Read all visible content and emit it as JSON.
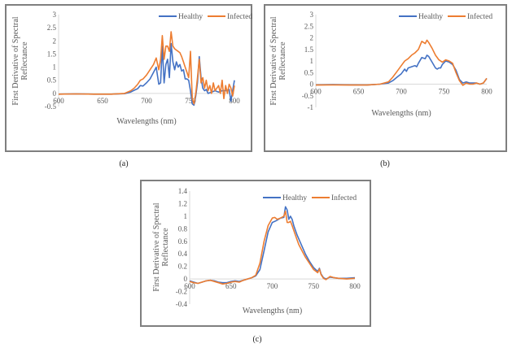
{
  "panels": [
    {
      "label": "(a)"
    },
    {
      "label": "(b)"
    },
    {
      "label": "(c)"
    }
  ],
  "chart_data": [
    {
      "id": "a",
      "type": "line",
      "title": "",
      "xlabel": "Wavelengths (nm)",
      "ylabel": "First Derivative of Spectral Reflectance",
      "ylabel_lines": [
        "First Derivative of Spectral",
        "Reflectance"
      ],
      "xlim": [
        600,
        800
      ],
      "ylim": [
        -0.5,
        3
      ],
      "xticks": [
        600,
        650,
        700,
        750,
        800
      ],
      "yticks": [
        -0.5,
        0,
        0.5,
        1,
        1.5,
        2,
        2.5,
        3
      ],
      "ytick_labels": [
        "-0.5",
        "0",
        "0.5",
        "1",
        "1.5",
        "2",
        "2.5",
        "3"
      ],
      "legend": "top-right",
      "grid": false,
      "series": [
        {
          "name": "Healthy",
          "color": "#4472C4",
          "x": [
            600,
            620,
            640,
            660,
            675,
            682,
            686,
            690,
            693,
            696,
            700,
            704,
            708,
            711,
            714,
            716,
            718,
            720,
            722,
            724,
            726,
            728,
            730,
            732,
            734,
            736,
            738,
            740,
            742,
            744,
            746,
            748,
            750,
            752,
            754,
            756,
            758,
            760,
            762,
            764,
            766,
            768,
            770,
            774,
            778,
            782,
            786,
            790,
            794,
            796,
            798,
            800
          ],
          "y": [
            -0.03,
            -0.02,
            -0.03,
            -0.03,
            -0.01,
            0.05,
            0.12,
            0.18,
            0.3,
            0.28,
            0.4,
            0.55,
            0.8,
            1.0,
            0.35,
            0.4,
            1.8,
            0.4,
            1.1,
            1.3,
            0.6,
            1.9,
            1.2,
            0.9,
            1.2,
            1.0,
            1.1,
            0.85,
            0.9,
            0.55,
            0.55,
            0.5,
            0.1,
            -0.4,
            -0.45,
            -0.1,
            0.4,
            1.4,
            0.6,
            0.2,
            0.1,
            0.15,
            0.0,
            0.05,
            0.1,
            0.05,
            0.1,
            0.1,
            0.15,
            -0.3,
            0.1,
            0.5
          ]
        },
        {
          "name": "Infected",
          "color": "#ED7D31",
          "x": [
            600,
            620,
            640,
            660,
            675,
            682,
            686,
            690,
            693,
            696,
            700,
            704,
            708,
            711,
            714,
            716,
            718,
            720,
            722,
            724,
            726,
            728,
            730,
            732,
            734,
            736,
            738,
            740,
            742,
            744,
            746,
            748,
            750,
            752,
            754,
            756,
            758,
            760,
            762,
            764,
            766,
            768,
            770,
            772,
            774,
            776,
            778,
            780,
            782,
            784,
            786,
            788,
            790,
            792,
            794,
            796,
            798,
            800
          ],
          "y": [
            -0.03,
            -0.02,
            -0.03,
            -0.03,
            0.0,
            0.1,
            0.2,
            0.35,
            0.5,
            0.55,
            0.7,
            0.9,
            1.1,
            1.35,
            0.9,
            1.3,
            2.2,
            1.3,
            1.8,
            1.8,
            1.6,
            2.35,
            1.8,
            1.7,
            1.65,
            1.6,
            1.55,
            1.4,
            1.2,
            1.0,
            0.8,
            0.6,
            1.6,
            -0.2,
            -0.4,
            0.0,
            0.6,
            1.3,
            0.4,
            0.6,
            0.2,
            0.5,
            0.1,
            0.3,
            0.0,
            0.4,
            0.1,
            0.2,
            0.3,
            0.0,
            0.5,
            -0.2,
            0.3,
            0.0,
            0.35,
            0.2,
            -0.1,
            0.3
          ]
        }
      ]
    },
    {
      "id": "b",
      "type": "line",
      "title": "",
      "xlabel": "Wavelengths (nm)",
      "ylabel": "First Derivative of Spectral Reflectance",
      "ylabel_lines": [
        "First Derivative of Spectral",
        "Reflectance"
      ],
      "xlim": [
        600,
        800
      ],
      "ylim": [
        -1,
        3
      ],
      "xticks": [
        600,
        650,
        700,
        750,
        800
      ],
      "yticks": [
        -1,
        -0.5,
        0,
        0.5,
        1,
        1.5,
        2,
        2.5,
        3
      ],
      "ytick_labels": [
        "-1",
        "-0.5",
        "0",
        "0.5",
        "1",
        "1.5",
        "2",
        "2.5",
        "3"
      ],
      "legend": "top-right",
      "grid": false,
      "series": [
        {
          "name": "Healthy",
          "color": "#4472C4",
          "x": [
            600,
            620,
            640,
            660,
            675,
            685,
            690,
            695,
            700,
            704,
            706,
            708,
            712,
            716,
            718,
            720,
            724,
            728,
            730,
            732,
            736,
            740,
            742,
            744,
            746,
            748,
            752,
            756,
            760,
            764,
            768,
            772,
            776,
            780,
            784,
            788,
            792,
            796,
            800
          ],
          "y": [
            -0.03,
            -0.02,
            -0.03,
            -0.04,
            0.0,
            0.05,
            0.15,
            0.3,
            0.45,
            0.65,
            0.55,
            0.7,
            0.75,
            0.8,
            0.75,
            0.9,
            1.15,
            1.1,
            1.25,
            1.2,
            0.95,
            0.7,
            0.65,
            0.7,
            0.7,
            0.85,
            1.0,
            0.95,
            0.85,
            0.6,
            0.2,
            0.05,
            0.1,
            0.05,
            0.05,
            0.05,
            0.0,
            0.05,
            0.25
          ]
        },
        {
          "name": "Infected",
          "color": "#ED7D31",
          "x": [
            600,
            620,
            640,
            660,
            675,
            685,
            690,
            695,
            700,
            704,
            708,
            712,
            716,
            720,
            724,
            726,
            728,
            730,
            732,
            736,
            740,
            744,
            748,
            752,
            756,
            760,
            764,
            768,
            772,
            776,
            780,
            784,
            788,
            792,
            796,
            800
          ],
          "y": [
            -0.04,
            -0.03,
            -0.04,
            -0.04,
            0.0,
            0.1,
            0.3,
            0.55,
            0.8,
            1.0,
            1.1,
            1.25,
            1.35,
            1.5,
            1.85,
            1.8,
            1.75,
            1.9,
            1.8,
            1.55,
            1.25,
            1.05,
            0.95,
            1.05,
            1.0,
            0.9,
            0.5,
            0.15,
            -0.05,
            0.05,
            0.0,
            0.0,
            0.05,
            0.0,
            0.05,
            0.25
          ]
        }
      ]
    },
    {
      "id": "c",
      "type": "line",
      "title": "",
      "xlabel": "Wavelengths (nm)",
      "ylabel": "First Derivative of Spectral Reflectance",
      "ylabel_lines": [
        "First Derivative of Spectral",
        "Reflectance"
      ],
      "xlim": [
        600,
        800
      ],
      "ylim": [
        -0.4,
        1.4
      ],
      "xticks": [
        600,
        650,
        700,
        750,
        800
      ],
      "yticks": [
        -0.4,
        -0.2,
        0,
        0.2,
        0.4,
        0.6,
        0.8,
        1,
        1.2,
        1.4
      ],
      "ytick_labels": [
        "-0.4",
        "-0.2",
        "0",
        "0.2",
        "0.4",
        "0.6",
        "0.8",
        "1",
        "1.2",
        "1.4"
      ],
      "legend": "top-right",
      "grid": false,
      "series": [
        {
          "name": "Healthy",
          "color": "#4472C4",
          "x": [
            600,
            605,
            610,
            615,
            620,
            625,
            630,
            635,
            640,
            645,
            650,
            655,
            660,
            665,
            670,
            675,
            680,
            685,
            690,
            695,
            700,
            705,
            710,
            714,
            716,
            718,
            720,
            722,
            724,
            726,
            730,
            735,
            740,
            745,
            750,
            755,
            757,
            759,
            762,
            765,
            770,
            775,
            780,
            790,
            800
          ],
          "y": [
            -0.03,
            -0.05,
            -0.07,
            -0.05,
            -0.03,
            -0.02,
            -0.03,
            -0.05,
            -0.06,
            -0.06,
            -0.04,
            -0.03,
            -0.04,
            -0.02,
            0.0,
            0.02,
            0.05,
            0.15,
            0.45,
            0.75,
            0.9,
            0.93,
            0.97,
            0.98,
            1.15,
            1.1,
            0.95,
            1.0,
            0.95,
            0.85,
            0.7,
            0.55,
            0.4,
            0.28,
            0.18,
            0.12,
            0.17,
            0.08,
            0.02,
            0.0,
            0.03,
            0.02,
            0.01,
            0.01,
            0.02
          ]
        },
        {
          "name": "Infected",
          "color": "#ED7D31",
          "x": [
            600,
            605,
            610,
            615,
            620,
            625,
            630,
            635,
            640,
            645,
            650,
            655,
            660,
            665,
            670,
            675,
            680,
            685,
            690,
            695,
            700,
            703,
            706,
            710,
            714,
            716,
            718,
            720,
            722,
            724,
            728,
            732,
            736,
            740,
            745,
            750,
            755,
            757,
            759,
            762,
            765,
            770,
            775,
            780,
            790,
            800
          ],
          "y": [
            -0.04,
            -0.06,
            -0.07,
            -0.05,
            -0.03,
            -0.02,
            -0.04,
            -0.06,
            -0.08,
            -0.07,
            -0.05,
            -0.04,
            -0.05,
            -0.02,
            0.0,
            0.02,
            0.06,
            0.25,
            0.6,
            0.85,
            0.97,
            0.98,
            0.95,
            0.97,
            1.0,
            1.08,
            0.9,
            0.9,
            0.92,
            0.85,
            0.7,
            0.55,
            0.45,
            0.35,
            0.25,
            0.15,
            0.1,
            0.16,
            0.07,
            0.01,
            -0.01,
            0.04,
            0.02,
            0.01,
            0.0,
            0.01
          ]
        }
      ]
    }
  ]
}
